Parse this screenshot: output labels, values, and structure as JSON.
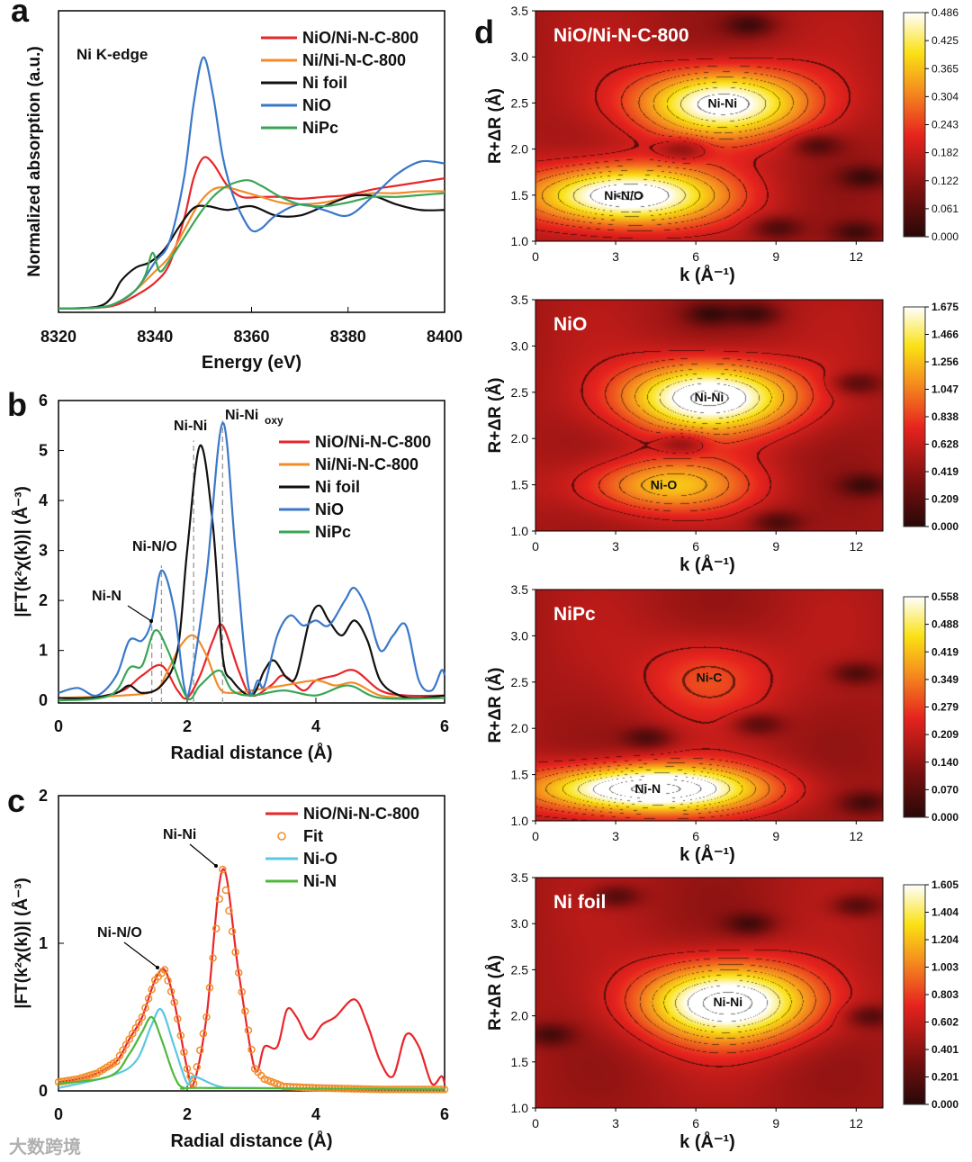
{
  "watermark": "大数跨境",
  "chart_data": [
    {
      "panel": "a",
      "type": "line",
      "annotation": "Ni K-edge",
      "xlabel": "Energy (eV)",
      "ylabel": "Normalized absorption (a.u.)",
      "xlim": [
        8320,
        8400
      ],
      "ylim": [
        -0.02,
        1.6
      ],
      "xticks": [
        8320,
        8340,
        8360,
        8380,
        8400
      ],
      "yticks": [],
      "legend_position": "top-right",
      "series": [
        {
          "name": "NiO/Ni-N-C-800",
          "color": "#e8262a",
          "x": [
            8320,
            8328,
            8332,
            8336,
            8340,
            8343,
            8346,
            8348,
            8350,
            8352,
            8355,
            8358,
            8362,
            8366,
            8370,
            8375,
            8380,
            8385,
            8390,
            8395,
            8400
          ],
          "y": [
            0,
            0.005,
            0.02,
            0.07,
            0.14,
            0.24,
            0.48,
            0.7,
            0.81,
            0.78,
            0.66,
            0.6,
            0.6,
            0.6,
            0.59,
            0.6,
            0.61,
            0.64,
            0.66,
            0.68,
            0.7
          ]
        },
        {
          "name": "Ni/Ni-N-C-800",
          "color": "#f28c28",
          "x": [
            8320,
            8328,
            8332,
            8336,
            8340,
            8343,
            8346,
            8349,
            8352,
            8355,
            8358,
            8362,
            8366,
            8370,
            8375,
            8380,
            8385,
            8390,
            8395,
            8400
          ],
          "y": [
            0,
            0.005,
            0.03,
            0.1,
            0.2,
            0.28,
            0.42,
            0.56,
            0.64,
            0.65,
            0.63,
            0.6,
            0.57,
            0.56,
            0.57,
            0.6,
            0.62,
            0.62,
            0.63,
            0.63
          ]
        },
        {
          "name": "Ni foil",
          "color": "#111111",
          "x": [
            8320,
            8328,
            8331,
            8333,
            8336,
            8339,
            8342,
            8345,
            8348,
            8351,
            8355,
            8360,
            8365,
            8370,
            8375,
            8380,
            8383,
            8386,
            8390,
            8395,
            8400
          ],
          "y": [
            0,
            0.01,
            0.06,
            0.15,
            0.22,
            0.25,
            0.32,
            0.44,
            0.54,
            0.55,
            0.53,
            0.55,
            0.5,
            0.5,
            0.55,
            0.6,
            0.61,
            0.6,
            0.56,
            0.53,
            0.53
          ]
        },
        {
          "name": "NiO",
          "color": "#3a78c9",
          "x": [
            8320,
            8328,
            8332,
            8336,
            8340,
            8343,
            8346,
            8348,
            8350,
            8352,
            8354,
            8356,
            8358,
            8360,
            8362,
            8365,
            8370,
            8375,
            8380,
            8385,
            8390,
            8395,
            8400
          ],
          "y": [
            0,
            0.005,
            0.03,
            0.1,
            0.25,
            0.36,
            0.7,
            1.1,
            1.35,
            1.15,
            0.82,
            0.62,
            0.5,
            0.42,
            0.43,
            0.5,
            0.56,
            0.53,
            0.5,
            0.6,
            0.72,
            0.79,
            0.78
          ]
        },
        {
          "name": "NiPc",
          "color": "#3aa655",
          "x": [
            8320,
            8328,
            8332,
            8336,
            8338,
            8339.5,
            8341,
            8343,
            8346,
            8349,
            8352,
            8355,
            8359,
            8362,
            8366,
            8370,
            8375,
            8380,
            8385,
            8390,
            8395,
            8400
          ],
          "y": [
            0,
            0.005,
            0.03,
            0.1,
            0.18,
            0.3,
            0.2,
            0.26,
            0.38,
            0.5,
            0.6,
            0.66,
            0.69,
            0.66,
            0.6,
            0.56,
            0.55,
            0.57,
            0.6,
            0.6,
            0.61,
            0.62
          ]
        }
      ]
    },
    {
      "panel": "b",
      "type": "line",
      "xlabel": "Radial distance (Å)",
      "ylabel": "|FT(k²χ(k))| (Å⁻³)",
      "xlim": [
        0,
        6
      ],
      "ylim": [
        -0.05,
        6
      ],
      "xticks": [
        0,
        2,
        4,
        6
      ],
      "yticks": [
        0,
        1,
        2,
        3,
        4,
        5,
        6
      ],
      "legend_position": "right",
      "annotations": [
        {
          "text": "Ni-N",
          "x": 1.45
        },
        {
          "text": "Ni-N/O",
          "x": 1.6
        },
        {
          "text": "Ni-Ni",
          "x": 2.1
        },
        {
          "text": "Ni-Ni",
          "sub": "oxy",
          "x": 2.55
        }
      ],
      "series": [
        {
          "name": "NiO/Ni-N-C-800",
          "color": "#e8262a",
          "x": [
            0,
            0.5,
            1.0,
            1.3,
            1.6,
            1.85,
            2.0,
            2.2,
            2.4,
            2.55,
            2.8,
            3.0,
            3.3,
            3.5,
            3.8,
            4.0,
            4.3,
            4.6,
            5.0,
            5.4,
            6.0
          ],
          "y": [
            0.05,
            0.05,
            0.2,
            0.5,
            0.7,
            0.2,
            0.05,
            0.5,
            1.2,
            1.5,
            0.6,
            0.1,
            0.3,
            0.5,
            0.2,
            0.4,
            0.5,
            0.6,
            0.2,
            0.1,
            0.1
          ]
        },
        {
          "name": "Ni/Ni-N-C-800",
          "color": "#f28c28",
          "x": [
            0,
            1.0,
            1.5,
            1.7,
            1.9,
            2.1,
            2.3,
            2.5,
            2.7,
            3.0,
            3.5,
            4.0,
            4.3,
            4.6,
            5.0,
            5.5,
            6.0
          ],
          "y": [
            0.05,
            0.1,
            0.2,
            0.6,
            1.1,
            1.3,
            0.9,
            0.25,
            0.15,
            0.2,
            0.3,
            0.4,
            0.3,
            0.35,
            0.1,
            0.05,
            0.05
          ]
        },
        {
          "name": "Ni foil",
          "color": "#111111",
          "x": [
            0,
            0.5,
            0.9,
            1.1,
            1.3,
            1.6,
            1.85,
            2.0,
            2.2,
            2.4,
            2.55,
            2.7,
            3.0,
            3.2,
            3.35,
            3.55,
            3.7,
            3.9,
            4.05,
            4.2,
            4.4,
            4.6,
            4.8,
            5.0,
            5.3,
            5.6,
            6.0
          ],
          "y": [
            0.05,
            0.05,
            0.15,
            0.3,
            0.15,
            0.3,
            1.0,
            3.0,
            5.1,
            3.5,
            0.9,
            0.4,
            0.1,
            0.6,
            0.8,
            0.45,
            0.5,
            1.6,
            1.9,
            1.6,
            1.3,
            1.6,
            1.2,
            0.4,
            0.1,
            0.05,
            0.1
          ]
        },
        {
          "name": "NiO",
          "color": "#3a78c9",
          "x": [
            0,
            0.3,
            0.6,
            0.9,
            1.1,
            1.3,
            1.45,
            1.6,
            1.8,
            1.95,
            2.05,
            2.3,
            2.55,
            2.75,
            2.95,
            3.1,
            3.2,
            3.4,
            3.6,
            3.8,
            4.0,
            4.2,
            4.45,
            4.6,
            4.8,
            5.0,
            5.2,
            5.4,
            5.6,
            5.8,
            5.95,
            6.0
          ],
          "y": [
            0.15,
            0.25,
            0.1,
            0.5,
            1.2,
            1.2,
            1.6,
            2.6,
            1.8,
            0.3,
            0.3,
            2.5,
            5.55,
            3.0,
            0.3,
            0.4,
            0.3,
            1.3,
            1.7,
            1.5,
            1.6,
            1.5,
            2.0,
            2.25,
            1.8,
            1.0,
            1.3,
            1.5,
            0.4,
            0.2,
            0.6,
            0.5
          ]
        },
        {
          "name": "NiPc",
          "color": "#3aa655",
          "x": [
            0,
            0.8,
            1.1,
            1.3,
            1.5,
            1.7,
            2.0,
            2.2,
            2.5,
            2.7,
            3.0,
            3.5,
            4.0,
            4.5,
            5.0,
            6.0
          ],
          "y": [
            0,
            0.1,
            0.65,
            0.7,
            1.4,
            1.0,
            0.05,
            0.3,
            0.6,
            0.2,
            0.1,
            0.2,
            0.1,
            0.3,
            0.05,
            0.05
          ]
        }
      ]
    },
    {
      "panel": "c",
      "type": "line",
      "xlabel": "Radial distance (Å)",
      "ylabel": "|FT(k²χ(k))| (Å⁻³)",
      "xlim": [
        0,
        6
      ],
      "ylim": [
        0,
        2
      ],
      "xticks": [
        0,
        2,
        4,
        6
      ],
      "yticks": [
        0,
        1,
        2
      ],
      "legend_position": "top-right",
      "annotations": [
        {
          "text": "Ni-Ni",
          "x": 2.55
        },
        {
          "text": "Ni-N/O",
          "x": 1.65
        }
      ],
      "series": [
        {
          "name": "NiO/Ni-N-C-800",
          "color": "#e8262a",
          "style": "line",
          "x": [
            0,
            0.3,
            0.6,
            0.9,
            1.1,
            1.3,
            1.5,
            1.65,
            1.8,
            2.0,
            2.1,
            2.3,
            2.55,
            2.8,
            3.05,
            3.2,
            3.4,
            3.55,
            3.7,
            3.9,
            4.1,
            4.3,
            4.6,
            4.8,
            5.0,
            5.2,
            5.4,
            5.6,
            5.8,
            5.95,
            6.0
          ],
          "y": [
            0.06,
            0.08,
            0.12,
            0.2,
            0.35,
            0.5,
            0.75,
            0.82,
            0.6,
            0.15,
            0.05,
            0.5,
            1.5,
            0.8,
            0.15,
            0.3,
            0.3,
            0.55,
            0.5,
            0.35,
            0.45,
            0.5,
            0.62,
            0.45,
            0.2,
            0.1,
            0.38,
            0.3,
            0.05,
            0.1,
            0.05
          ]
        },
        {
          "name": "Fit",
          "color": "#f28c28",
          "style": "markers",
          "x": [
            0,
            0.3,
            0.6,
            0.9,
            1.1,
            1.3,
            1.5,
            1.65,
            1.8,
            2.0,
            2.1,
            2.3,
            2.55,
            2.8,
            3.05,
            3.2,
            3.5,
            4.0,
            5.0,
            6.0
          ],
          "y": [
            0.06,
            0.08,
            0.12,
            0.2,
            0.35,
            0.5,
            0.75,
            0.82,
            0.6,
            0.15,
            0.05,
            0.5,
            1.5,
            0.8,
            0.15,
            0.08,
            0.03,
            0.02,
            0.01,
            0.01
          ]
        },
        {
          "name": "Ni-O",
          "color": "#5cc7e0",
          "style": "line",
          "x": [
            0,
            0.8,
            1.2,
            1.45,
            1.6,
            1.8,
            2.0,
            2.1,
            2.5,
            3.0,
            6.0
          ],
          "y": [
            0.02,
            0.1,
            0.2,
            0.45,
            0.55,
            0.3,
            0.05,
            0.1,
            0.03,
            0.02,
            0.01
          ]
        },
        {
          "name": "Ni-N",
          "color": "#4fb83a",
          "style": "line",
          "x": [
            0,
            0.8,
            1.1,
            1.3,
            1.45,
            1.6,
            1.8,
            1.95,
            2.3,
            6.0
          ],
          "y": [
            0.05,
            0.1,
            0.25,
            0.4,
            0.5,
            0.35,
            0.1,
            0.02,
            0.02,
            0.01
          ]
        }
      ]
    },
    {
      "panel": "d",
      "type": "heatmap",
      "xlabel": "k (Å⁻¹)",
      "ylabel": "R+ΔR (Å)",
      "xlim": [
        0,
        13
      ],
      "ylim": [
        1.0,
        3.5
      ],
      "xticks": [
        0,
        3,
        6,
        9,
        12
      ],
      "yticks": [
        "1.0",
        "1.5",
        "2.0",
        "2.5",
        "3.0",
        "3.5"
      ],
      "maps": [
        {
          "title": "NiO/Ni-N-C-800",
          "colorbar_ticks": [
            "0.486",
            "0.425",
            "0.365",
            "0.304",
            "0.243",
            "0.182",
            "0.122",
            "0.061",
            "0.000"
          ],
          "peaks": [
            {
              "label": "Ni-Ni",
              "k": 7.0,
              "R": 2.5,
              "amp": 0.78,
              "sk": 3.2,
              "sR": 0.38
            },
            {
              "label": "Ni-N/O",
              "k": 3.3,
              "R": 1.5,
              "amp": 0.85,
              "sk": 3.6,
              "sR": 0.33
            }
          ],
          "minima": [
            {
              "k": 8,
              "R": 3.35
            },
            {
              "k": 5.5,
              "R": 2.0
            },
            {
              "k": 10.5,
              "R": 2.05
            },
            {
              "k": 12.3,
              "R": 1.7
            },
            {
              "k": 12,
              "R": 1.1
            },
            {
              "k": 9,
              "R": 1.15
            }
          ]
        },
        {
          "title": "NiO",
          "colorbar_ticks": [
            "1.675",
            "1.466",
            "1.256",
            "1.047",
            "0.838",
            "0.628",
            "0.419",
            "0.209",
            "0.000"
          ],
          "peaks": [
            {
              "label": "Ni-Ni",
              "k": 6.5,
              "R": 2.45,
              "amp": 0.85,
              "sk": 3.2,
              "sR": 0.38
            },
            {
              "label": "Ni-O",
              "k": 4.8,
              "R": 1.5,
              "amp": 0.45,
              "sk": 3.2,
              "sR": 0.3
            }
          ],
          "minima": [
            {
              "k": 5.5,
              "R": 1.95
            },
            {
              "k": 8.2,
              "R": 3.35
            },
            {
              "k": 6.5,
              "R": 3.35
            },
            {
              "k": 12.3,
              "R": 1.5
            },
            {
              "k": 9,
              "R": 1.1
            },
            {
              "k": 12,
              "R": 2.6
            }
          ]
        },
        {
          "title": "NiPc",
          "colorbar_ticks": [
            "0.558",
            "0.488",
            "0.419",
            "0.349",
            "0.279",
            "0.209",
            "0.140",
            "0.070",
            "0.000"
          ],
          "peaks": [
            {
              "label": "Ni-N",
              "k": 4.2,
              "R": 1.35,
              "amp": 0.95,
              "sk": 4.2,
              "sR": 0.26
            },
            {
              "label": "Ni-C",
              "k": 6.5,
              "R": 2.55,
              "amp": 0.25,
              "sk": 2.5,
              "sR": 0.45
            }
          ],
          "minima": [
            {
              "k": 4.2,
              "R": 1.9
            },
            {
              "k": 8.3,
              "R": 2.05
            },
            {
              "k": 12.3,
              "R": 1.2
            },
            {
              "k": 12,
              "R": 2.6
            }
          ]
        },
        {
          "title": "Ni foil",
          "colorbar_ticks": [
            "1.605",
            "1.404",
            "1.204",
            "1.003",
            "0.803",
            "0.602",
            "0.401",
            "0.201",
            "0.000"
          ],
          "peaks": [
            {
              "label": "Ni-Ni",
              "k": 7.2,
              "R": 2.15,
              "amp": 0.85,
              "sk": 3.3,
              "sR": 0.42
            }
          ],
          "minima": [
            {
              "k": 8,
              "R": 3.0
            },
            {
              "k": 3,
              "R": 3.3
            },
            {
              "k": 12,
              "R": 3.2
            },
            {
              "k": 0.5,
              "R": 1.8
            },
            {
              "k": 12.5,
              "R": 2.0
            }
          ]
        }
      ]
    }
  ],
  "panel_letters": [
    "a",
    "b",
    "c",
    "d"
  ]
}
